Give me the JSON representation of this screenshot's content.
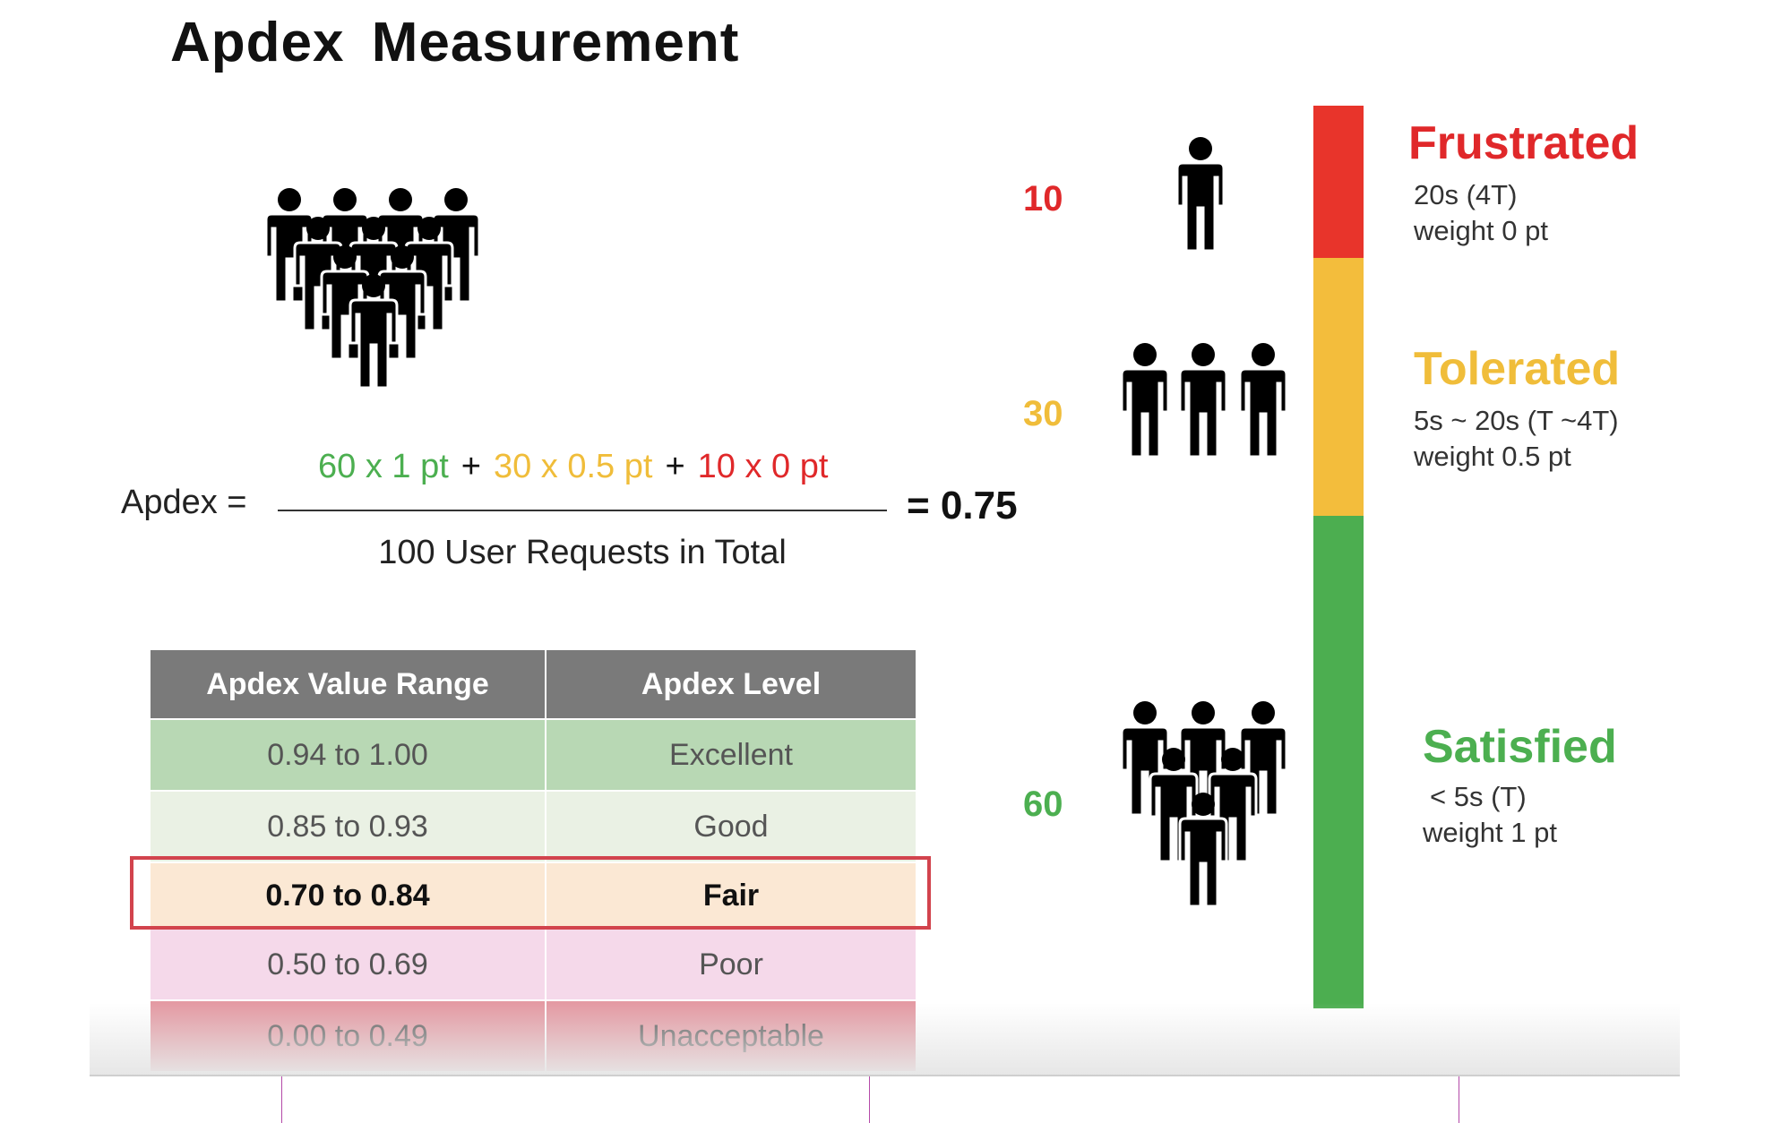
{
  "title": "Apdex Measurement",
  "formula": {
    "label": "Apdex =",
    "terms": [
      {
        "text": "60 x 1 pt",
        "color": "#4caf50"
      },
      {
        "text": "+",
        "color": "#111111"
      },
      {
        "text": "30 x 0.5 pt",
        "color": "#f0bd3a"
      },
      {
        "text": "+",
        "color": "#111111"
      },
      {
        "text": "10 x 0 pt",
        "color": "#e0282a"
      }
    ],
    "denominator": "100 User Requests in Total",
    "result": "= 0.75"
  },
  "table": {
    "headers": [
      "Apdex Value Range",
      "Apdex Level"
    ],
    "rows": [
      {
        "range": "0.94 to 1.00",
        "level": "Excellent",
        "bg": "#b8d8b4"
      },
      {
        "range": "0.85 to 0.93",
        "level": "Good",
        "bg": "#eaf1e4"
      },
      {
        "range": "0.70 to 0.84",
        "level": "Fair",
        "bg": "#fbe8d4",
        "highlighted": true
      },
      {
        "range": "0.50 to 0.69",
        "level": "Poor",
        "bg": "#f5d9ea"
      },
      {
        "range": "0.00 to 0.49",
        "level": "Unacceptable",
        "bg": "#e49aa3"
      }
    ]
  },
  "zones": [
    {
      "name": "Frustrated",
      "color": "#e0282a",
      "count": "10",
      "line1": "20s (4T)",
      "line2": "weight 0 pt"
    },
    {
      "name": "Tolerated",
      "color": "#f0bd3a",
      "count": "30",
      "line1": "5s ~ 20s (T ~4T)",
      "line2": "weight 0.5 pt"
    },
    {
      "name": "Satisfied",
      "color": "#4caf50",
      "count": "60",
      "line1": "< 5s (T)",
      "line2": "weight 1 pt"
    }
  ],
  "colors": {
    "header_bg": "#7a7a7a",
    "highlight_border": "#d2434d",
    "gauge_red": "#e8342b",
    "gauge_yellow": "#f3bd3c",
    "gauge_green": "#4cae50"
  },
  "icons": [
    "crowd-icon",
    "person-icon"
  ]
}
